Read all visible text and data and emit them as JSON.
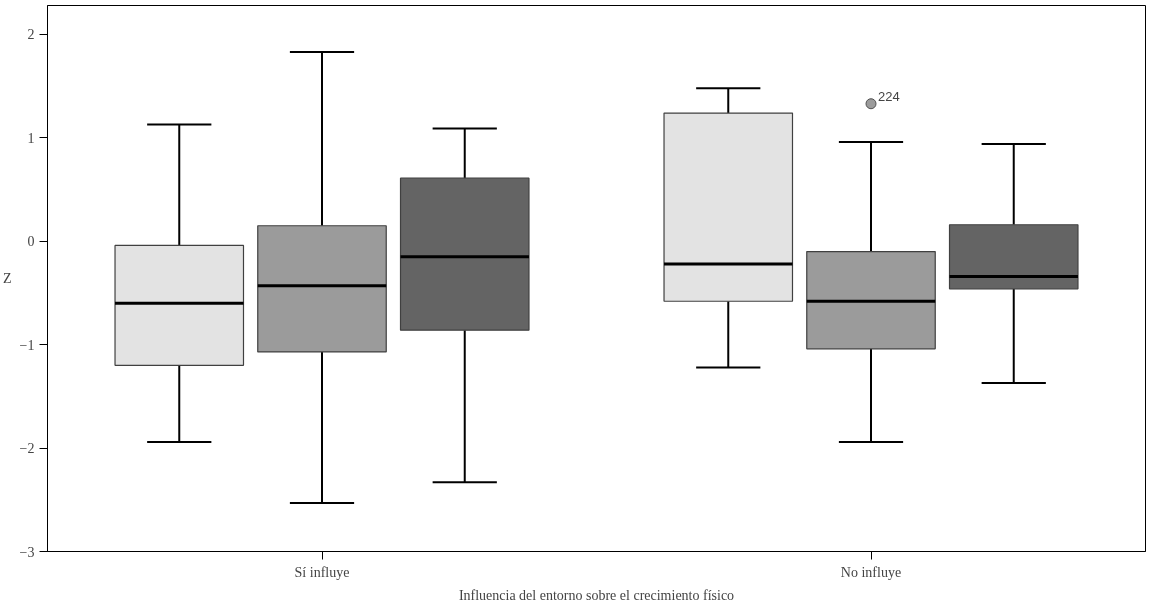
{
  "chart_data": {
    "type": "box",
    "xlabel": "Influencia del entorno sobre el crecimiento físico",
    "ylabel": "Z",
    "categories": [
      "Sí influye",
      "No influye"
    ],
    "ylim": [
      -3,
      2.28
    ],
    "yticks": [
      -3,
      -2,
      -1,
      0,
      1,
      2
    ],
    "grid": false,
    "series": [
      {
        "color": "#e3e3e3",
        "boxes": [
          {
            "low": -1.94,
            "q1": -1.2,
            "median": -0.6,
            "q3": -0.04,
            "high": 1.13
          },
          {
            "low": -1.22,
            "q1": -0.58,
            "median": -0.22,
            "q3": 1.24,
            "high": 1.48
          }
        ]
      },
      {
        "color": "#9b9b9b",
        "boxes": [
          {
            "low": -2.53,
            "q1": -1.07,
            "median": -0.43,
            "q3": 0.15,
            "high": 1.83
          },
          {
            "low": -1.94,
            "q1": -1.04,
            "median": -0.58,
            "q3": -0.1,
            "high": 0.96,
            "outliers": [
              1.33
            ]
          }
        ]
      },
      {
        "color": "#646464",
        "boxes": [
          {
            "low": -2.33,
            "q1": -0.86,
            "median": -0.15,
            "q3": 0.61,
            "high": 1.09
          },
          {
            "low": -1.37,
            "q1": -0.46,
            "median": -0.34,
            "q3": 0.16,
            "high": 0.94
          }
        ]
      }
    ],
    "annotations": [
      "224"
    ]
  }
}
